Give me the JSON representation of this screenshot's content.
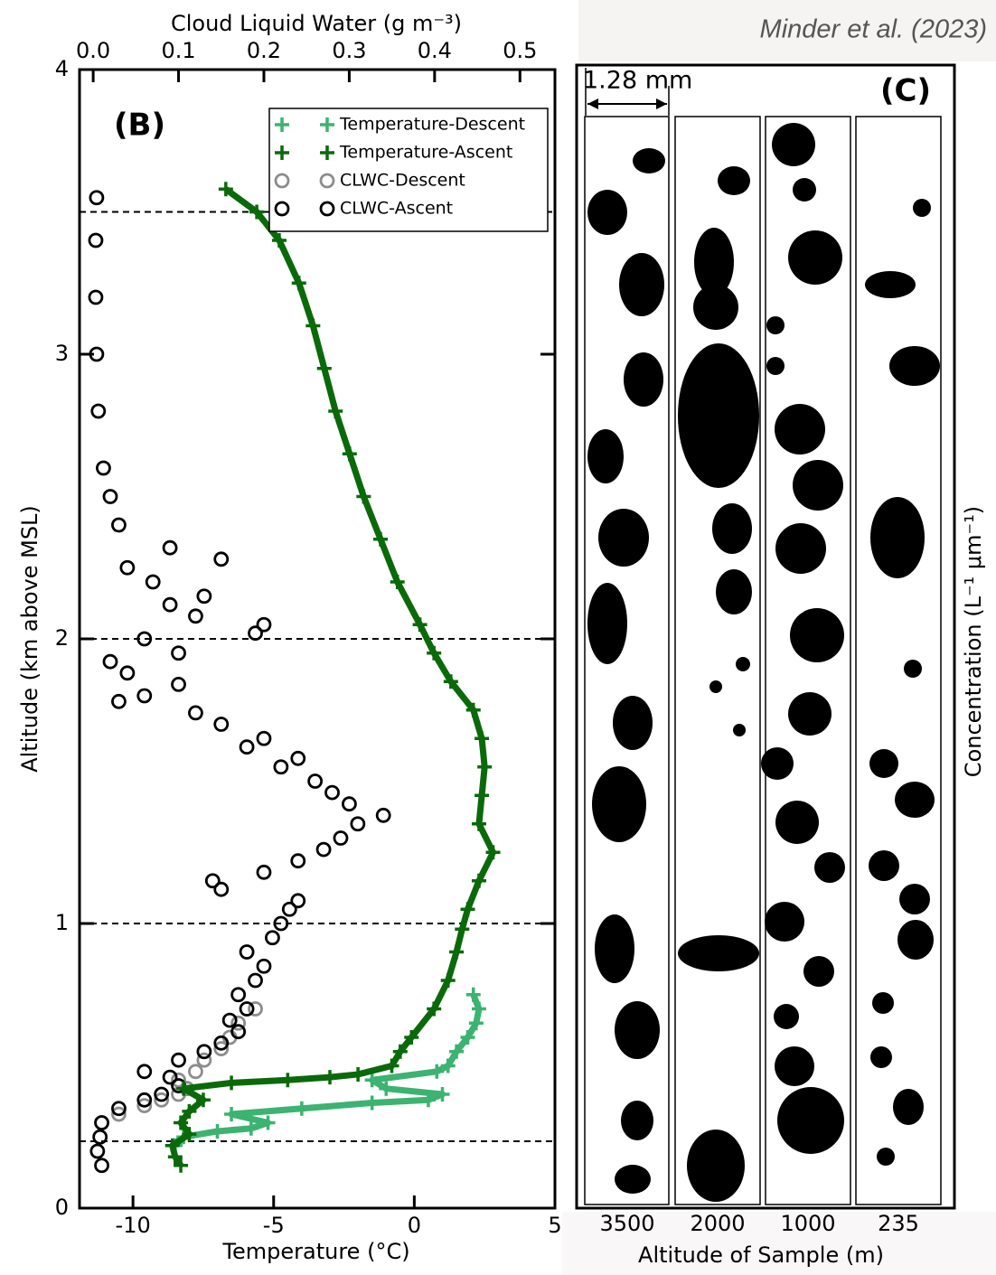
{
  "source": "Minder et al. (2023)",
  "chart_data": [
    {
      "type": "profile",
      "label": "(B)",
      "xlabel": "Temperature (°C)",
      "x2label": "Cloud Liquid Water (g m⁻³)",
      "ylabel": "Altitude (km above MSL)",
      "xlim": [
        -11.9,
        5
      ],
      "xticks": [
        -10,
        -5,
        0,
        5
      ],
      "x2lim": [
        -0.016,
        0.541
      ],
      "x2ticks": [
        {
          "value": 0,
          "label": "0.0"
        },
        0.1,
        0.2,
        0.3,
        0.4,
        0.5
      ],
      "ylim": [
        0,
        4
      ],
      "yticks": [
        0,
        1,
        2,
        3,
        4
      ],
      "hlines": [
        3.5,
        2.0,
        1.0,
        0.235
      ],
      "legend": "upper right",
      "series": [
        {
          "name": "Temperature-Descent",
          "color": "#3cb371",
          "marker": "plus",
          "line": true,
          "x": [
            -8.5,
            -8.2,
            -7.0,
            -5.8,
            -5.2,
            -6.5,
            -4.0,
            -1.5,
            0.5,
            1.0,
            -1.0,
            -1.5,
            0.8,
            1.2,
            1.5,
            1.9,
            2.2,
            2.3,
            2.1
          ],
          "values": [
            0.22,
            0.25,
            0.27,
            0.28,
            0.3,
            0.33,
            0.35,
            0.37,
            0.38,
            0.4,
            0.42,
            0.45,
            0.48,
            0.5,
            0.55,
            0.6,
            0.65,
            0.7,
            0.75
          ]
        },
        {
          "name": "Temperature-Ascent",
          "color": "#0a6a0a",
          "marker": "plus",
          "line": true,
          "x": [
            -8.3,
            -8.5,
            -8.6,
            -8.0,
            -8.3,
            -8.0,
            -7.5,
            -8.2,
            -6.5,
            -4.5,
            -3.0,
            -2.0,
            -0.8,
            -0.5,
            -0.1,
            0.7,
            1.2,
            1.5,
            1.7,
            1.9,
            2.3,
            2.8,
            2.3,
            2.4,
            2.5,
            2.4,
            2.1,
            1.3,
            0.7,
            0.2,
            -0.6,
            -1.2,
            -1.8,
            -2.3,
            -2.8,
            -3.2,
            -3.6,
            -4.1,
            -4.8,
            -5.6,
            -6.7
          ],
          "values": [
            0.15,
            0.18,
            0.22,
            0.26,
            0.3,
            0.34,
            0.38,
            0.42,
            0.44,
            0.45,
            0.46,
            0.47,
            0.5,
            0.55,
            0.6,
            0.7,
            0.8,
            0.9,
            0.98,
            1.05,
            1.15,
            1.25,
            1.35,
            1.45,
            1.55,
            1.65,
            1.75,
            1.85,
            1.95,
            2.05,
            2.2,
            2.35,
            2.5,
            2.65,
            2.8,
            2.95,
            3.1,
            3.25,
            3.4,
            3.5,
            3.58
          ]
        },
        {
          "name": "CLWC-Descent",
          "color": "#8c8c8c",
          "marker": "circle",
          "axis": "x2",
          "x": [
            0.01,
            0.03,
            0.06,
            0.08,
            0.1,
            0.11,
            0.1,
            0.12,
            0.13,
            0.15,
            0.16,
            0.17,
            0.19
          ],
          "values": [
            0.3,
            0.33,
            0.36,
            0.38,
            0.4,
            0.42,
            0.45,
            0.48,
            0.52,
            0.56,
            0.6,
            0.65,
            0.7
          ]
        },
        {
          "name": "CLWC-Ascent",
          "color": "#000000",
          "marker": "circle",
          "axis": "x2",
          "x": [
            0.01,
            0.005,
            0.008,
            0.01,
            0.03,
            0.06,
            0.08,
            0.1,
            0.09,
            0.06,
            0.1,
            0.13,
            0.15,
            0.17,
            0.16,
            0.18,
            0.17,
            0.19,
            0.2,
            0.18,
            0.21,
            0.22,
            0.23,
            0.24,
            0.15,
            0.14,
            0.2,
            0.24,
            0.27,
            0.29,
            0.31,
            0.34,
            0.3,
            0.28,
            0.26,
            0.22,
            0.24,
            0.18,
            0.2,
            0.15,
            0.12,
            0.03,
            0.06,
            0.1,
            0.04,
            0.02,
            0.1,
            0.06,
            0.19,
            0.2,
            0.12,
            0.09,
            0.13,
            0.07,
            0.04,
            0.15,
            0.09,
            0.03,
            0.02,
            0.012,
            0.006,
            0.004,
            0.003,
            0.003,
            0.004
          ],
          "values": [
            0.15,
            0.2,
            0.25,
            0.3,
            0.35,
            0.38,
            0.4,
            0.43,
            0.46,
            0.48,
            0.52,
            0.55,
            0.58,
            0.62,
            0.66,
            0.7,
            0.75,
            0.8,
            0.85,
            0.9,
            0.95,
            1.0,
            1.05,
            1.08,
            1.12,
            1.15,
            1.18,
            1.22,
            1.26,
            1.3,
            1.35,
            1.38,
            1.42,
            1.46,
            1.5,
            1.55,
            1.58,
            1.62,
            1.65,
            1.7,
            1.74,
            1.78,
            1.8,
            1.84,
            1.88,
            1.92,
            1.95,
            2.0,
            2.02,
            2.05,
            2.08,
            2.12,
            2.15,
            2.2,
            2.25,
            2.28,
            2.32,
            2.4,
            2.5,
            2.6,
            2.8,
            3.0,
            3.2,
            3.4,
            3.55
          ]
        }
      ]
    },
    {
      "type": "image",
      "label": "(C)",
      "scale_label": "1.28 mm",
      "categories": [
        "3500",
        "2000",
        "1000",
        "235"
      ],
      "xlabel": "Altitude of Sample (m)",
      "ylabel": "Concentration (L⁻¹ μm⁻¹)"
    }
  ]
}
